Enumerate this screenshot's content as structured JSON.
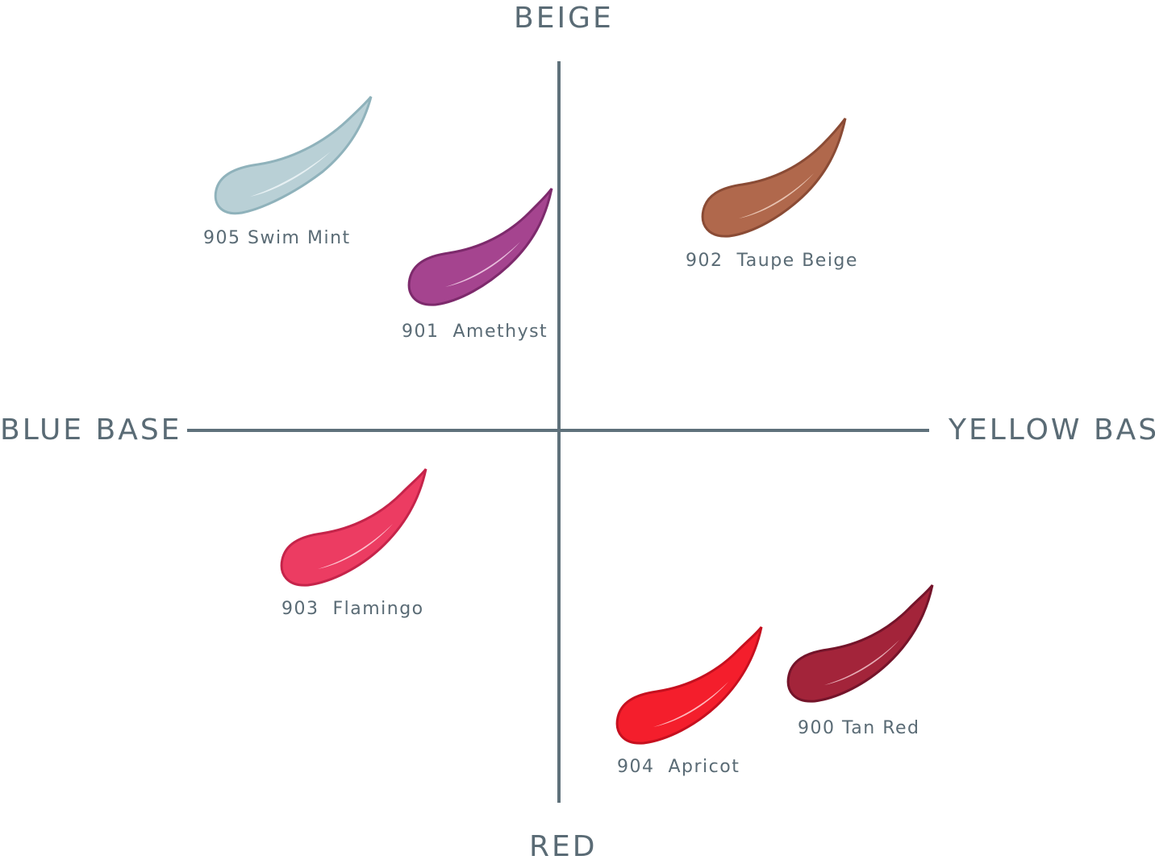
{
  "axes": {
    "top": "BEIGE",
    "bottom": "RED",
    "left": "BLUE BASE",
    "right": "YELLOW BASE"
  },
  "swatches": [
    {
      "label": "905 Swim Mint",
      "color": "#b9d0d6",
      "edge": "#8fb2bb",
      "highlight": "#eef6f8"
    },
    {
      "label": "901  Amethyst",
      "color": "#a5448f",
      "edge": "#7d2a6c",
      "highlight": "#f3d4ea"
    },
    {
      "label": "902  Taupe Beige",
      "color": "#b0684c",
      "edge": "#8a4b35",
      "highlight": "#f1d2c2"
    },
    {
      "label": "903  Flamingo",
      "color": "#ec3c62",
      "edge": "#c5244a",
      "highlight": "#ffd7df"
    },
    {
      "label": "904  Apricot",
      "color": "#f41e2c",
      "edge": "#c6101f",
      "highlight": "#ffd4d6"
    },
    {
      "label": "900 Tan Red",
      "color": "#a3243a",
      "edge": "#74142a",
      "highlight": "#f2c4cb"
    }
  ]
}
